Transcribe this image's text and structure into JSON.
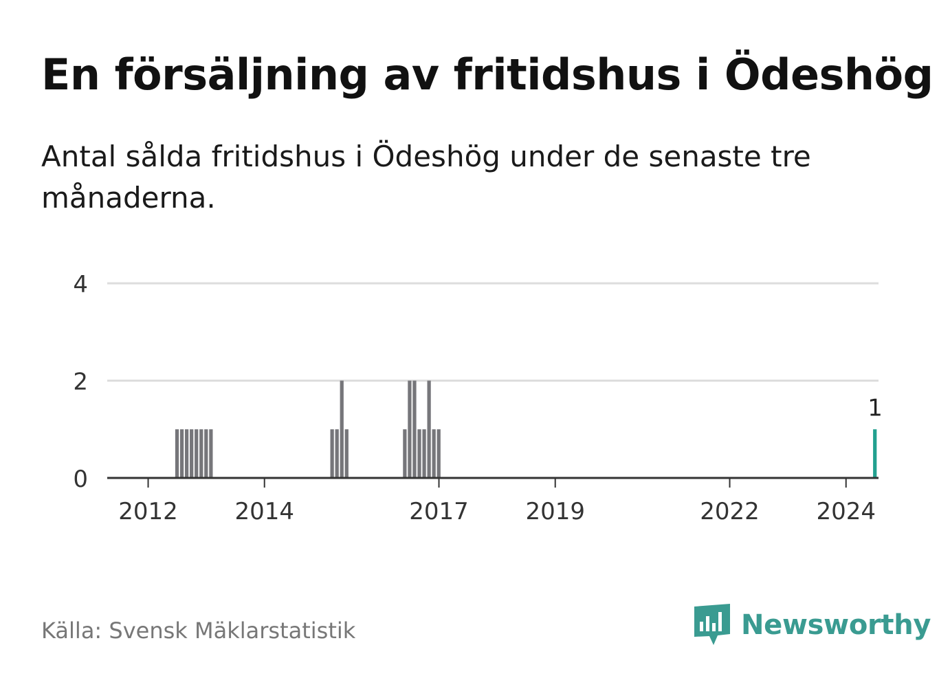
{
  "header": {
    "title": "En försäljning av fritidshus i Ödeshög",
    "subtitle": "Antal sålda fritidshus i Ödeshög under de senaste tre månaderna."
  },
  "footer": {
    "source": "Källa: Svensk Mäklarstatistik",
    "brand": "Newsworthy"
  },
  "colors": {
    "bar": "#76767a",
    "highlight": "#22a08f",
    "grid": "#dddddd",
    "axis": "#333333",
    "brand": "#3a9b91"
  },
  "chart_data": {
    "type": "bar",
    "title": "En försäljning av fritidshus i Ödeshög",
    "xlabel": "",
    "ylabel": "",
    "ylim": [
      0,
      4
    ],
    "yticks": [
      0,
      2,
      4
    ],
    "grid": true,
    "start_year": 2011,
    "start_month": 9,
    "x_ticks": [
      "2012",
      "2014",
      "2017",
      "2019",
      "2022",
      "2024"
    ],
    "x_tick_years": [
      2012,
      2014,
      2017,
      2019,
      2022,
      2024
    ],
    "values": [
      0,
      0,
      0,
      0,
      0,
      0,
      0,
      0,
      0,
      0,
      1,
      1,
      1,
      1,
      1,
      1,
      1,
      1,
      0,
      0,
      0,
      0,
      0,
      0,
      0,
      0,
      0,
      0,
      0,
      0,
      0,
      0,
      0,
      0,
      0,
      0,
      0,
      0,
      0,
      0,
      0,
      0,
      1,
      1,
      2,
      1,
      0,
      0,
      0,
      0,
      0,
      0,
      0,
      0,
      0,
      0,
      0,
      1,
      2,
      2,
      1,
      1,
      2,
      1,
      1,
      0,
      0,
      0,
      0,
      0,
      0,
      0,
      0,
      0,
      0,
      0,
      0,
      0,
      0,
      0,
      0,
      0,
      0,
      0,
      0,
      0,
      0,
      0,
      0,
      0,
      0,
      0,
      0,
      0,
      0,
      0,
      0,
      0,
      0,
      0,
      0,
      0,
      0,
      0,
      0,
      0,
      0,
      0,
      0,
      0,
      0,
      0,
      0,
      0,
      0,
      0,
      0,
      0,
      0,
      0,
      0,
      0,
      0,
      0,
      0,
      0,
      0,
      0,
      0,
      0,
      0,
      0,
      0,
      0,
      0,
      0,
      0,
      0,
      0,
      0,
      0,
      0,
      0,
      0,
      0,
      0,
      0,
      0,
      0,
      0,
      0,
      0,
      0,
      0,
      1
    ],
    "highlight_label": "1"
  }
}
